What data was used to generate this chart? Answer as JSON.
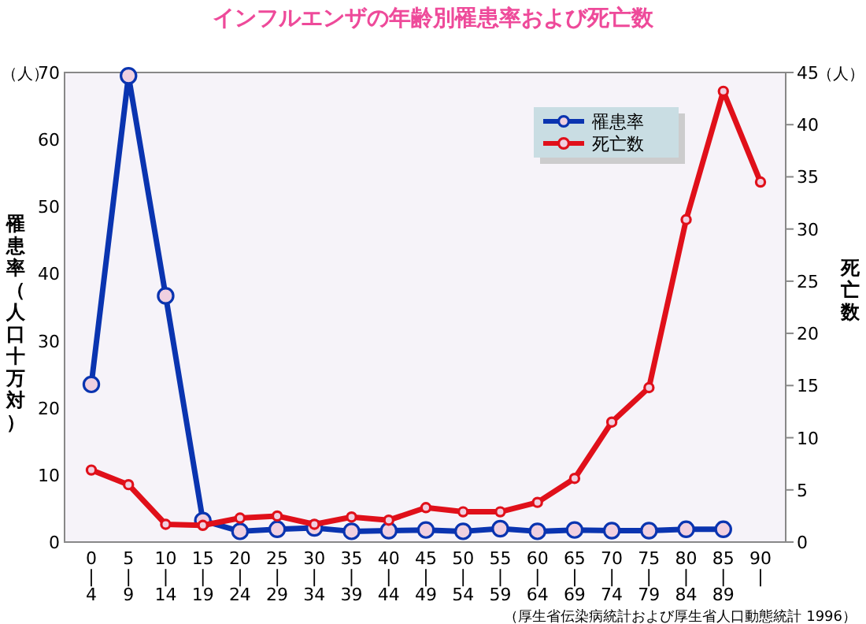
{
  "chart_data": {
    "type": "line",
    "title": "インフルエンザの年齢別罹患率および死亡数",
    "ylabel": "罹患率（人口十万対）",
    "y2label": "死亡数",
    "categories": [
      "0\n|\n4",
      "5\n|\n9",
      "10\n|\n14",
      "15\n|\n19",
      "20\n|\n24",
      "25\n|\n29",
      "30\n|\n34",
      "35\n|\n39",
      "40\n|\n44",
      "45\n|\n49",
      "50\n|\n54",
      "55\n|\n59",
      "60\n|\n64",
      "65\n|\n69",
      "70\n|\n74",
      "75\n|\n79",
      "80\n|\n84",
      "85\n|\n89",
      "90\n|"
    ],
    "series": [
      {
        "name": "罹患率",
        "color": "#0a34b0",
        "values": [
          23.5,
          69.5,
          36.7,
          3.2,
          1.6,
          1.9,
          2.1,
          1.6,
          1.7,
          1.8,
          1.6,
          2.0,
          1.6,
          1.8,
          1.7,
          1.7,
          1.9,
          1.9,
          null
        ]
      },
      {
        "name": "死亡数",
        "color": "#e0101a",
        "axis": "y2",
        "values": [
          6.9,
          5.5,
          1.7,
          1.6,
          2.3,
          2.5,
          1.7,
          2.4,
          2.1,
          3.3,
          2.9,
          2.9,
          3.8,
          6.1,
          11.5,
          14.8,
          30.9,
          43.2,
          34.5
        ]
      }
    ],
    "ylim": [
      0,
      70
    ],
    "yticks": [
      0,
      10,
      20,
      30,
      40,
      50,
      60,
      70
    ],
    "y2lim": [
      0,
      45
    ],
    "y2ticks": [
      0,
      5,
      10,
      15,
      20,
      25,
      30,
      35,
      40,
      45
    ],
    "marker": "circle",
    "legend": "top right",
    "grid": false,
    "annotations": [
      "（人）",
      "（人）",
      "（厚生省伝染病統計および厚生省人口動態統計 1996）"
    ]
  }
}
